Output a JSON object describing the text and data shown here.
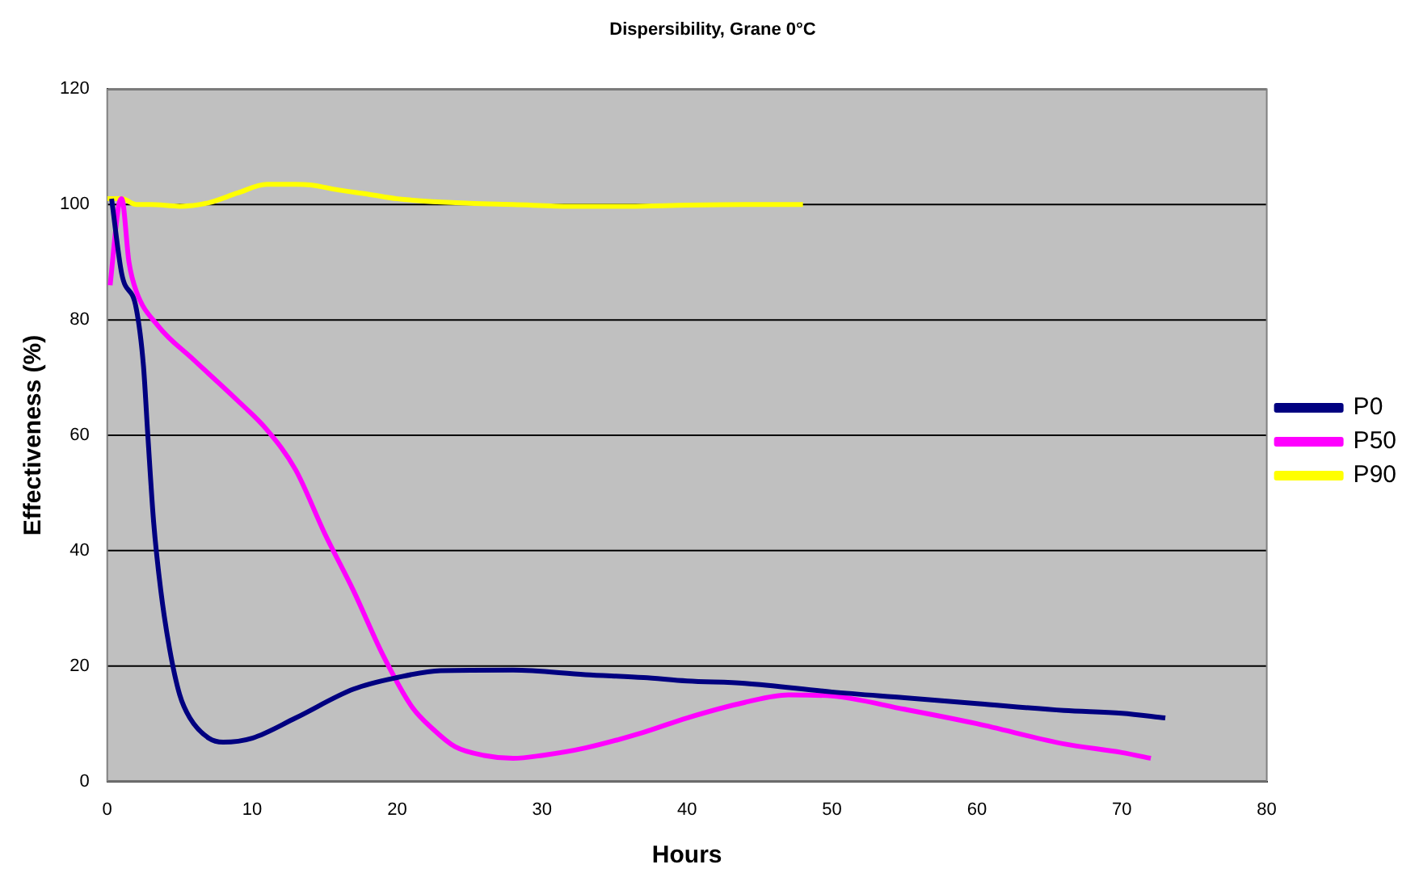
{
  "chart_data": {
    "type": "line",
    "title": "Dispersibility, Grane 0°C",
    "xlabel": "Hours",
    "ylabel": "Effectiveness (%)",
    "xlim": [
      0,
      80
    ],
    "xticks": [
      0,
      10,
      20,
      30,
      40,
      50,
      60,
      70,
      80
    ],
    "ylim": [
      0,
      120
    ],
    "yticks": [
      0,
      20,
      40,
      60,
      80,
      100,
      120
    ],
    "grid": "y",
    "legend": "right",
    "marker": "none",
    "line_style": "solid",
    "series": [
      {
        "name": "P0",
        "color": "#000080",
        "x": [
          0.3,
          1,
          2,
          2.5,
          2.8,
          3.2,
          3.7,
          4.3,
          5,
          5.7,
          7,
          8,
          10,
          13,
          17,
          20,
          23,
          28,
          33,
          37,
          40,
          44,
          50,
          55,
          60,
          66,
          70,
          73
        ],
        "values": [
          101,
          88,
          82,
          72,
          60,
          45,
          33,
          23,
          15,
          11,
          7.5,
          6.8,
          7.5,
          11,
          16,
          18,
          19.2,
          19.3,
          18.5,
          18,
          17.4,
          17,
          15.5,
          14.5,
          13.5,
          12.3,
          11.8,
          11
        ]
      },
      {
        "name": "P50",
        "color": "#ff00ff",
        "x": [
          0.2,
          0.8,
          1,
          1.5,
          2,
          3.5,
          6,
          9,
          11,
          13,
          15,
          17,
          19,
          21,
          22.5,
          24,
          26,
          28,
          30,
          33,
          37,
          40,
          44,
          47,
          50,
          55,
          60,
          66,
          70,
          72
        ],
        "values": [
          86,
          100,
          101,
          90,
          85,
          79,
          73,
          66,
          61,
          54,
          43,
          33,
          22,
          13,
          9,
          6,
          4.5,
          4,
          4.5,
          5.8,
          8.5,
          11,
          13.7,
          15,
          14.8,
          12.5,
          10,
          6.5,
          5,
          4
        ]
      },
      {
        "name": "P90",
        "color": "#ffff00",
        "x": [
          0,
          1,
          2,
          3,
          5,
          7,
          9,
          11,
          13,
          14,
          16,
          18,
          20,
          25,
          28,
          32,
          36,
          40,
          44,
          48
        ],
        "values": [
          101,
          101,
          100,
          100,
          99.7,
          100.3,
          102,
          103.5,
          103.5,
          103.4,
          102.5,
          101.8,
          101,
          100.2,
          100,
          99.7,
          99.7,
          99.9,
          100,
          100
        ]
      }
    ]
  }
}
